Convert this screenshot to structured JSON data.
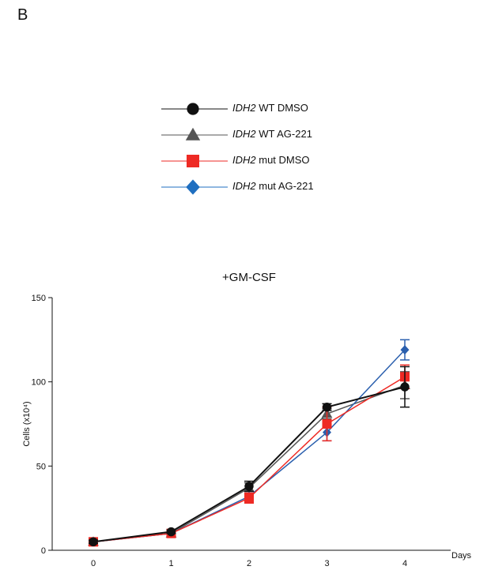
{
  "panel_label": "B",
  "legend": [
    {
      "gene": "IDH2",
      "label": "WT DMSO",
      "color": "#111111",
      "marker": "circle"
    },
    {
      "gene": "IDH2",
      "label": "WT AG-221",
      "color": "#555555",
      "marker": "triangle"
    },
    {
      "gene": "IDH2",
      "label": "mut DMSO",
      "color": "#ee2a24",
      "marker": "square"
    },
    {
      "gene": "IDH2",
      "label": "mut AG-221",
      "color": "#1f6fc0",
      "marker": "diamond"
    }
  ],
  "chart_data": {
    "type": "line",
    "title": "+GM-CSF",
    "xlabel": "Days",
    "ylabel": "Cells (x10⁴)",
    "x": [
      0,
      1,
      2,
      3,
      4
    ],
    "xlim": [
      0,
      4
    ],
    "ylim": [
      0,
      150
    ],
    "yticks": [
      0,
      50,
      100,
      150
    ],
    "series": [
      {
        "name": "IDH2 WT AG-221",
        "color": "#555555",
        "marker": "triangle",
        "values": [
          5,
          10,
          37,
          81,
          98
        ],
        "errors": [
          1,
          1,
          3,
          3,
          8
        ]
      },
      {
        "name": "IDH2 mut AG-221",
        "color": "#2a5fae",
        "marker": "diamond",
        "values": [
          5,
          10,
          32,
          70,
          119
        ],
        "errors": [
          1,
          1,
          3,
          5,
          6
        ]
      },
      {
        "name": "IDH2 mut DMSO",
        "color": "#ee2a24",
        "marker": "square",
        "values": [
          5,
          10,
          31,
          75,
          103
        ],
        "errors": [
          1,
          1,
          3,
          10,
          7
        ]
      },
      {
        "name": "IDH2 WT DMSO",
        "color": "#111111",
        "marker": "circle",
        "values": [
          5,
          11,
          38,
          85,
          97
        ],
        "errors": [
          1,
          1,
          3,
          2,
          12
        ]
      }
    ]
  }
}
